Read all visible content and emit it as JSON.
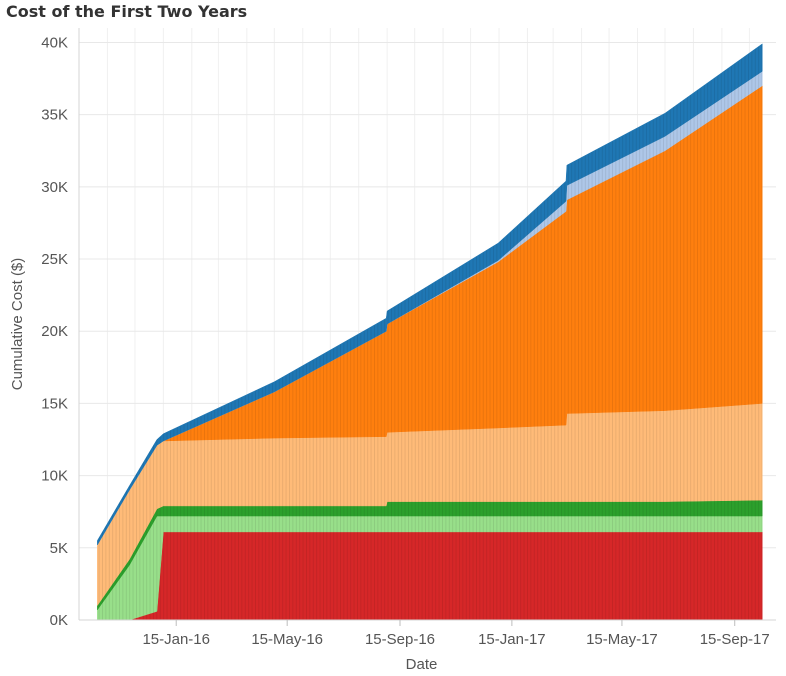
{
  "chart_data": {
    "type": "area",
    "stacked": true,
    "title": "Cost of the First Two Years",
    "xlabel": "Date",
    "ylabel": "Cumulative Cost ($)",
    "ylim": [
      0,
      41000
    ],
    "yticks": [
      0,
      5000,
      10000,
      15000,
      20000,
      25000,
      30000,
      35000,
      40000
    ],
    "ytick_labels": [
      "0K",
      "5K",
      "10K",
      "15K",
      "20K",
      "25K",
      "30K",
      "35K",
      "40K"
    ],
    "xlim": [
      "2015-10-01",
      "2017-10-30"
    ],
    "xticks": [
      "2016-01-15",
      "2016-05-15",
      "2016-09-15",
      "2017-01-15",
      "2017-05-15",
      "2017-09-15"
    ],
    "xtick_labels": [
      "15-Jan-16",
      "15-May-16",
      "15-Sep-16",
      "15-Jan-17",
      "15-May-17",
      "15-Sep-17"
    ],
    "x": [
      "2015-10-21",
      "2015-11-25",
      "2015-12-25",
      "2016-01-01",
      "2016-05-01",
      "2016-08-31",
      "2016-09-01",
      "2016-12-31",
      "2017-03-15",
      "2017-03-16",
      "2017-07-01",
      "2017-10-15"
    ],
    "series": [
      {
        "name": "red",
        "color": "#d62728",
        "values": [
          0,
          0,
          600,
          6100,
          6100,
          6100,
          6100,
          6100,
          6100,
          6100,
          6100,
          6100
        ]
      },
      {
        "name": "light green",
        "color": "#98df8a",
        "values": [
          700,
          3800,
          6600,
          1100,
          1100,
          1100,
          1100,
          1100,
          1100,
          1100,
          1100,
          1100
        ]
      },
      {
        "name": "green",
        "color": "#2ca02c",
        "values": [
          300,
          400,
          500,
          700,
          700,
          700,
          1000,
          1000,
          1000,
          1000,
          1000,
          1100
        ]
      },
      {
        "name": "light orange",
        "color": "#ffbb78",
        "values": [
          4200,
          4800,
          4400,
          4500,
          4700,
          4800,
          4800,
          5100,
          5300,
          6100,
          6300,
          6700
        ]
      },
      {
        "name": "orange",
        "color": "#ff7f0e",
        "values": [
          0,
          0,
          0,
          0,
          3200,
          7300,
          7500,
          11500,
          14800,
          14800,
          18000,
          22000
        ]
      },
      {
        "name": "light blue",
        "color": "#aec7e8",
        "values": [
          0,
          0,
          0,
          0,
          0,
          0,
          0,
          100,
          700,
          1000,
          1000,
          1000
        ]
      },
      {
        "name": "blue",
        "color": "#1f77b4",
        "values": [
          300,
          300,
          400,
          500,
          700,
          900,
          900,
          1200,
          1400,
          1400,
          1600,
          1900
        ]
      }
    ]
  }
}
